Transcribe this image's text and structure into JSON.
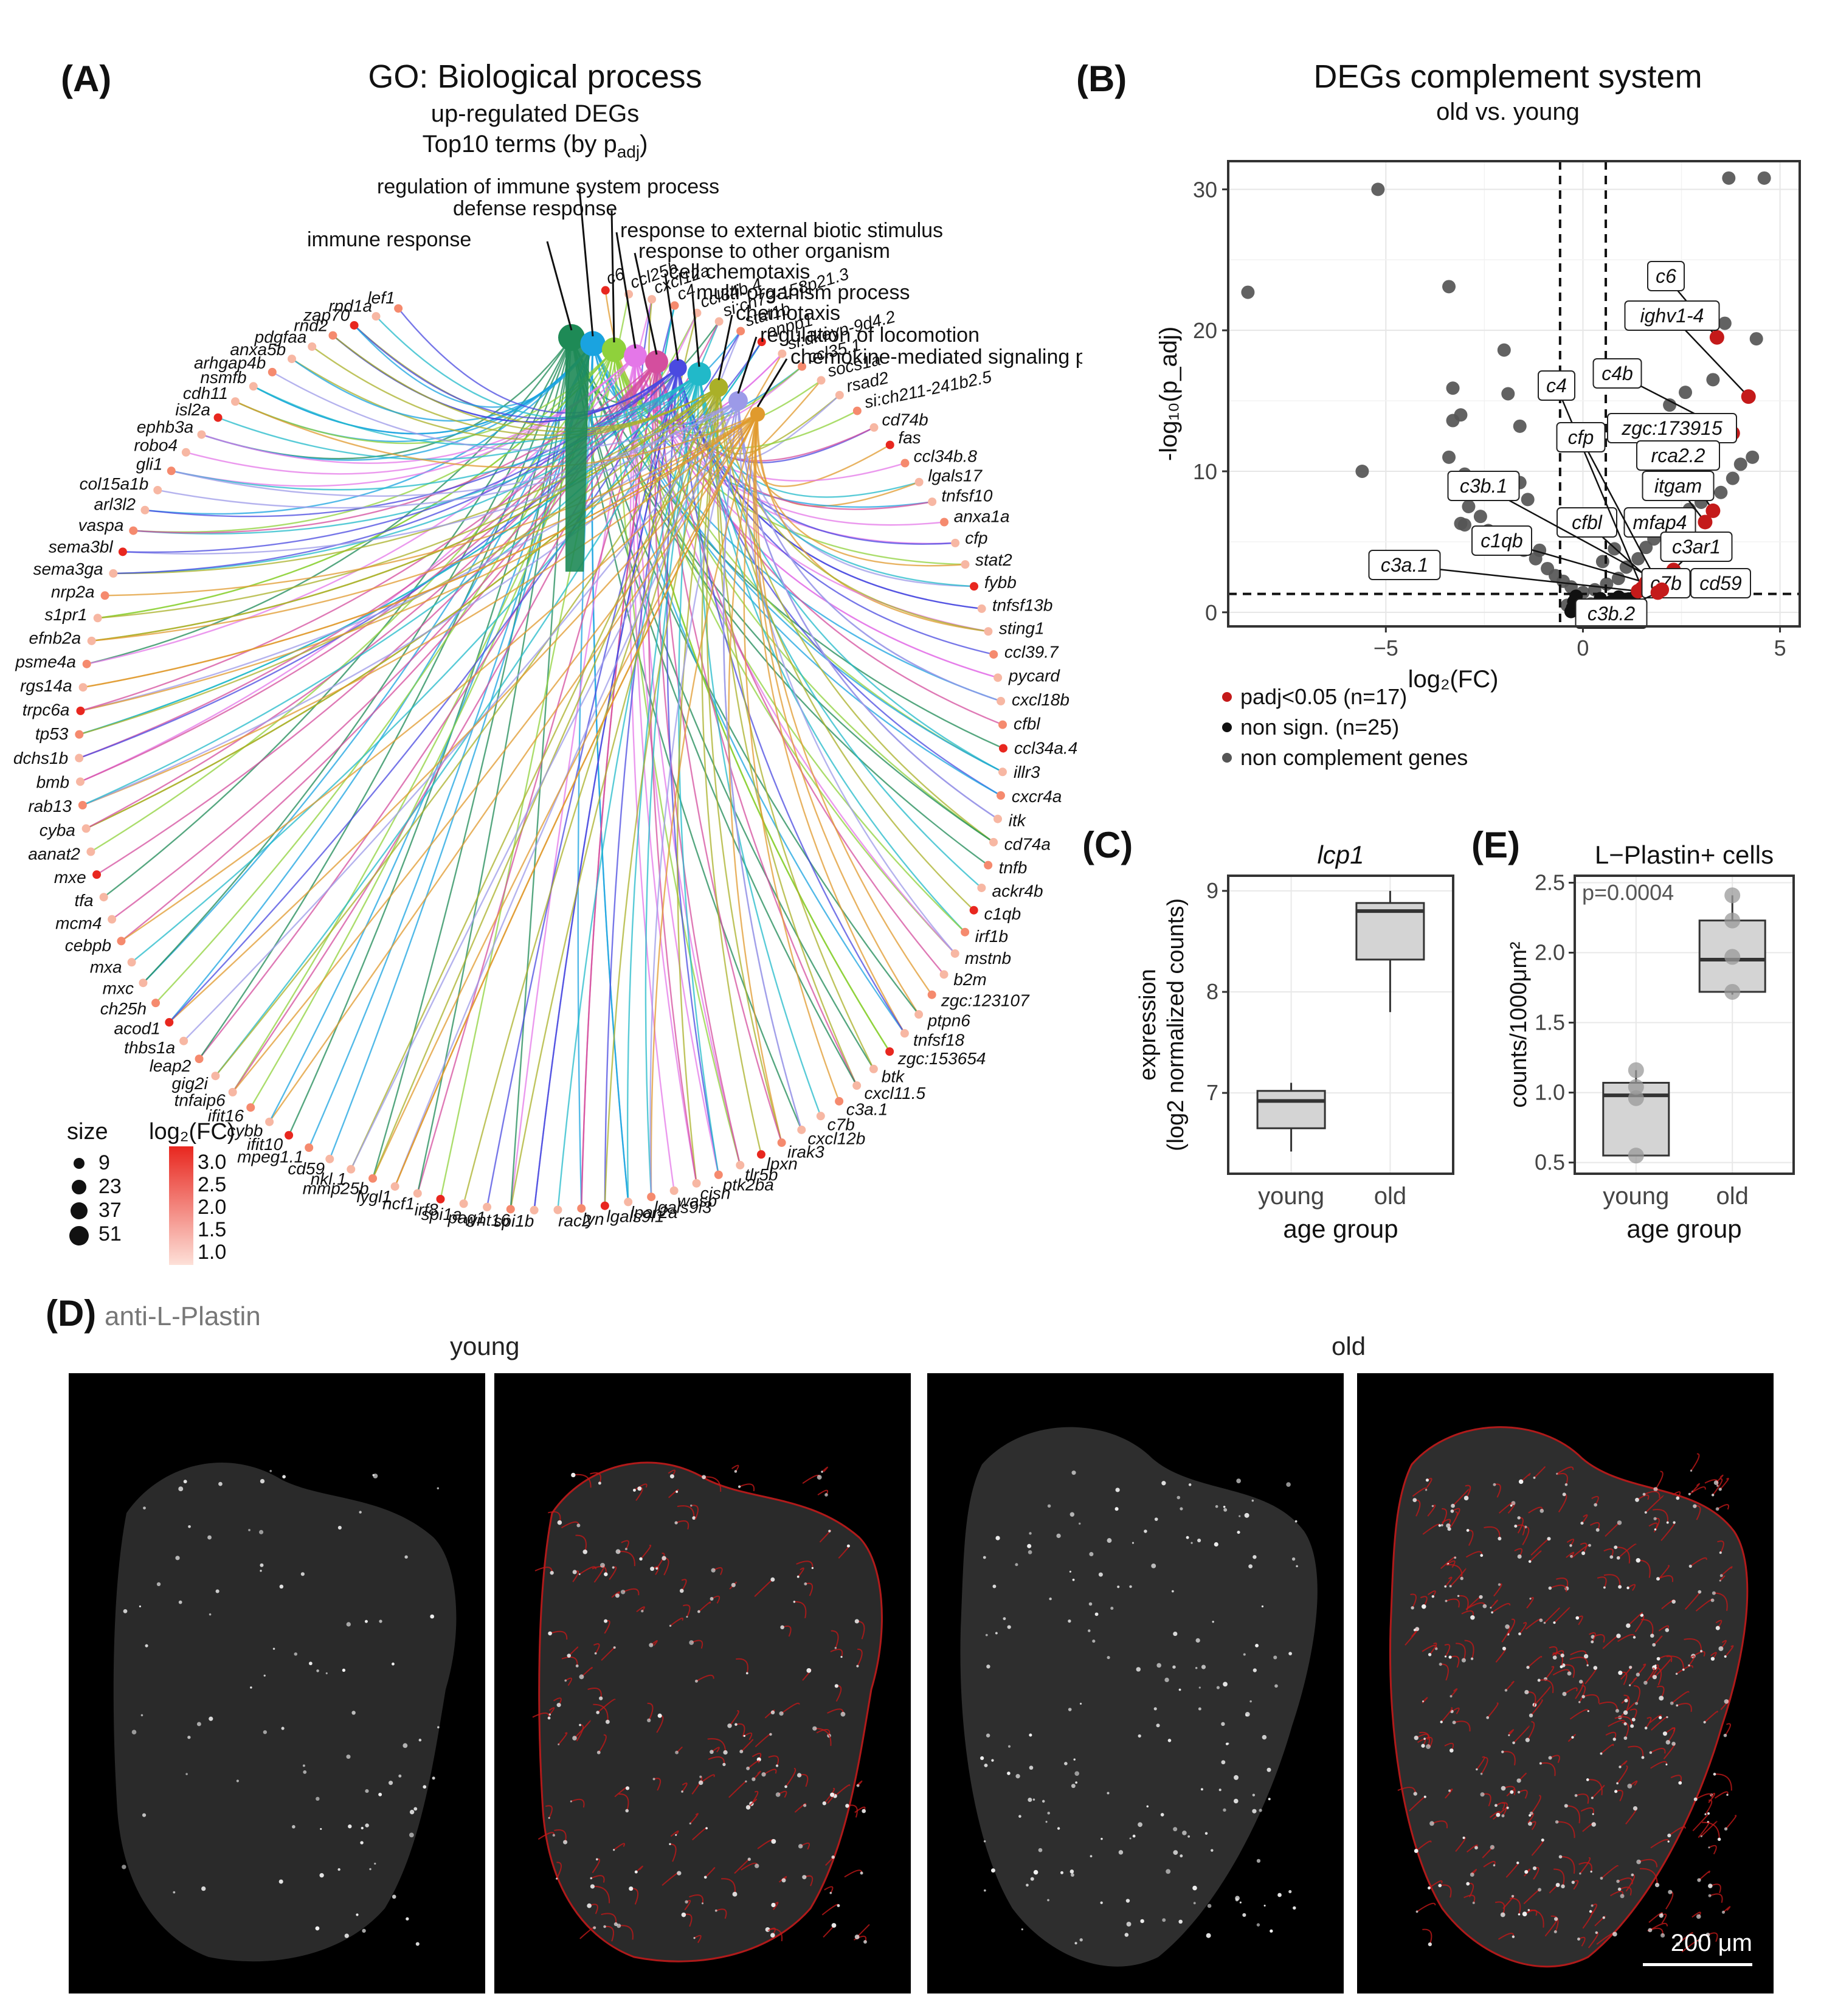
{
  "panelA": {
    "letter": "(A)",
    "title": "GO: Biological process",
    "subtitle1": "up-regulated DEGs",
    "subtitle2": "Top10 terms (by p",
    "subtitle2_sub": "adj",
    "subtitle2_end": ")",
    "size_legend_title": "size",
    "size_legend_values": [
      "9",
      "23",
      "37",
      "51"
    ],
    "color_legend_title": "log₂(FC)",
    "color_legend_values": [
      "3.0",
      "2.5",
      "2.0",
      "1.5",
      "1.0"
    ],
    "colors": {
      "low": "#fde0d8",
      "high": "#e8271f"
    }
  },
  "panelB": {
    "letter": "(B)",
    "title": "DEGs complement system",
    "subtitle": "old vs. young",
    "legend": [
      {
        "label": "padj<0.05 (n=17)",
        "color": "#c41a1a"
      },
      {
        "label": "non sign. (n=25)",
        "color": "#111111"
      },
      {
        "label": "non complement genes",
        "color": "#555555"
      }
    ]
  },
  "panelC": {
    "letter": "(C)"
  },
  "panelE": {
    "letter": "(E)"
  },
  "panelD": {
    "letter": "(D)",
    "label": "anti-L-Plastin",
    "young": "young",
    "old": "old",
    "scalebar": "200 μm"
  },
  "chart_data": [
    {
      "id": "go_network",
      "type": "network",
      "terms": [
        {
          "name": "immune response",
          "color": "#1e8a56",
          "size": 51
        },
        {
          "name": "regulation of immune system process",
          "color": "#1aa3e0",
          "size": 45
        },
        {
          "name": "defense response",
          "color": "#8fd13b",
          "size": 43
        },
        {
          "name": "response to external biotic stimulus",
          "color": "#e477e8",
          "size": 38
        },
        {
          "name": "response to other organism",
          "color": "#d44e9e",
          "size": 38
        },
        {
          "name": "cell chemotaxis",
          "color": "#4a4ae0",
          "size": 20
        },
        {
          "name": "multi-organism process",
          "color": "#21b9c9",
          "size": 40
        },
        {
          "name": "chemotaxis",
          "color": "#aab028",
          "size": 23
        },
        {
          "name": "regulation of locomotion",
          "color": "#9c9ae8",
          "size": 25
        },
        {
          "name": "chemokine-mediated signaling pathway",
          "color": "#e09a2d",
          "size": 9
        }
      ],
      "genes": [
        "c6",
        "ccl25b",
        "cxcl12a",
        "c4",
        "ccl34b.4",
        "si:ch73-158p21.3",
        "stat1b",
        "enpp1",
        "si:dkeyp-9d4.2",
        "ccl35.1",
        "socs1a",
        "rsad2",
        "si:ch211-241b2.5",
        "cd74b",
        "fas",
        "ccl34b.8",
        "lgals17",
        "tnfsf10",
        "anxa1a",
        "cfp",
        "stat2",
        "fybb",
        "tnfsf13b",
        "sting1",
        "ccl39.7",
        "pycard",
        "cxcl18b",
        "cfbl",
        "ccl34a.4",
        "illr3",
        "cxcr4a",
        "itk",
        "cd74a",
        "tnfb",
        "ackr4b",
        "c1qb",
        "irf1b",
        "mstnb",
        "b2m",
        "zgc:123107",
        "ptpn6",
        "tnfsf18",
        "zgc:153654",
        "btk",
        "cxcl11.5",
        "c3a.1",
        "c7b",
        "cxcl12b",
        "irak3",
        "lpxn",
        "tlr5b",
        "ptk2ba",
        "cish",
        "wasb",
        "lgals9l3",
        "lpar2a",
        "lgals9l1",
        "lyn",
        "rac2",
        "spi1b",
        "wnt16",
        "pag1",
        "spi1a",
        "irf8",
        "ncf1",
        "lygl1",
        "mmp25b",
        "nkl.1",
        "cd59",
        "mpeg1.1",
        "ifit10",
        "cybb",
        "ifit16",
        "tnfaip6",
        "gig2i",
        "leap2",
        "thbs1a",
        "acod1",
        "ch25h",
        "mxc",
        "mxa",
        "cebpb",
        "mcm4",
        "tfa",
        "mxe",
        "aanat2",
        "cyba",
        "rab13",
        "bmb",
        "dchs1b",
        "tp53",
        "trpc6a",
        "rgs14a",
        "psme4a",
        "efnb2a",
        "s1pr1",
        "nrp2a",
        "sema3ga",
        "sema3bl",
        "vaspa",
        "arl3l2",
        "col15a1b",
        "gli1",
        "robo4",
        "ephb3a",
        "isl2a",
        "cdh11",
        "nsmfb",
        "arhgap4b",
        "anxa5b",
        "pdgfaa",
        "rnd2",
        "zap70",
        "rnd1a",
        "lef1"
      ]
    },
    {
      "id": "volcano",
      "type": "scatter",
      "title": "DEGs complement system",
      "subtitle": "old vs. young",
      "xlabel": "log₂(FC)",
      "ylabel": "-log₁₀(p_adj)",
      "xlim": [
        -9,
        5.5
      ],
      "ylim": [
        -1,
        32
      ],
      "xticks": [
        -5,
        0,
        5
      ],
      "yticks": [
        0,
        10,
        20,
        30
      ],
      "vlines": [
        -0.58,
        0.58
      ],
      "hline": 1.3,
      "significant": [
        {
          "x": 3.4,
          "y": 19.5,
          "label": "c6"
        },
        {
          "x": 4.2,
          "y": 15.3,
          "label": "ighv1-4"
        },
        {
          "x": 3.8,
          "y": 12.7,
          "label": "c4b"
        },
        {
          "x": 3.0,
          "y": 8.7,
          "label": "zgc:173915"
        },
        {
          "x": 3.3,
          "y": 7.2,
          "label": "rca2.2"
        },
        {
          "x": 3.1,
          "y": 6.4,
          "label": "itgam"
        },
        {
          "x": 2.9,
          "y": 4.3,
          "label": "mfap4"
        },
        {
          "x": 2.3,
          "y": 3.0,
          "label": "c3ar1"
        },
        {
          "x": 1.7,
          "y": 2.3,
          "label": "cfbl"
        },
        {
          "x": 1.9,
          "y": 2.0,
          "label": "cd59"
        },
        {
          "x": 1.5,
          "y": 1.7,
          "label": "c4"
        },
        {
          "x": 1.8,
          "y": 2.6,
          "label": "cfp"
        },
        {
          "x": 2.1,
          "y": 1.9,
          "label": "c3b.1"
        },
        {
          "x": 1.6,
          "y": 2.1,
          "label": "c1qb"
        },
        {
          "x": 1.4,
          "y": 1.5,
          "label": "c3a.1"
        },
        {
          "x": 2.0,
          "y": 1.6,
          "label": "c7b"
        },
        {
          "x": 1.9,
          "y": 1.4,
          "label": "c3b.2"
        }
      ],
      "nonsig_count": 25,
      "background": [
        {
          "x": -8.5,
          "y": 22.7
        },
        {
          "x": -5.2,
          "y": 30.0
        },
        {
          "x": -3.4,
          "y": 23.1
        },
        {
          "x": -3.3,
          "y": 15.9
        },
        {
          "x": -3.1,
          "y": 14.0
        },
        {
          "x": -3.3,
          "y": 13.6
        },
        {
          "x": -3.0,
          "y": 9.8
        },
        {
          "x": -3.4,
          "y": 11.0
        },
        {
          "x": -5.6,
          "y": 10.0
        },
        {
          "x": -2.0,
          "y": 18.6
        },
        {
          "x": -1.9,
          "y": 15.5
        },
        {
          "x": -1.6,
          "y": 13.2
        },
        {
          "x": 3.7,
          "y": 30.8
        },
        {
          "x": 4.6,
          "y": 30.8
        },
        {
          "x": 3.6,
          "y": 20.5
        },
        {
          "x": 4.4,
          "y": 19.4
        },
        {
          "x": 2.6,
          "y": 15.6
        },
        {
          "x": 3.3,
          "y": 16.5
        },
        {
          "x": 2.2,
          "y": 14.7
        },
        {
          "x": 3.2,
          "y": 11.6
        },
        {
          "x": 2.6,
          "y": 11.4
        },
        {
          "x": 2.2,
          "y": 9.6
        },
        {
          "x": 1.7,
          "y": 10.9
        },
        {
          "x": -2.2,
          "y": 9.4
        },
        {
          "x": -1.6,
          "y": 9.2
        },
        {
          "x": -1.4,
          "y": 8.0
        },
        {
          "x": -2.9,
          "y": 7.5
        },
        {
          "x": -2.6,
          "y": 6.8
        },
        {
          "x": -3.1,
          "y": 6.3
        },
        {
          "x": -3.0,
          "y": 6.2
        },
        {
          "x": -2.4,
          "y": 5.8
        },
        {
          "x": -2.0,
          "y": 5.3
        },
        {
          "x": -1.8,
          "y": 4.9
        },
        {
          "x": -1.5,
          "y": 4.4
        },
        {
          "x": -1.2,
          "y": 3.8
        },
        {
          "x": -1.1,
          "y": 4.4
        },
        {
          "x": -0.9,
          "y": 3.1
        },
        {
          "x": -0.7,
          "y": 2.6
        },
        {
          "x": -0.5,
          "y": 2.2
        },
        {
          "x": -0.3,
          "y": 1.8
        },
        {
          "x": 0.0,
          "y": 1.4
        },
        {
          "x": 0.3,
          "y": 1.6
        },
        {
          "x": 0.6,
          "y": 2.0
        },
        {
          "x": 0.9,
          "y": 2.4
        },
        {
          "x": 1.1,
          "y": 3.2
        },
        {
          "x": 1.4,
          "y": 3.8
        },
        {
          "x": 1.6,
          "y": 4.6
        },
        {
          "x": 1.8,
          "y": 5.2
        },
        {
          "x": 2.0,
          "y": 6.0
        },
        {
          "x": 2.4,
          "y": 6.6
        },
        {
          "x": 2.7,
          "y": 7.3
        },
        {
          "x": 3.0,
          "y": 7.8
        },
        {
          "x": 3.5,
          "y": 8.5
        },
        {
          "x": 3.8,
          "y": 9.5
        },
        {
          "x": 4.0,
          "y": 10.5
        },
        {
          "x": 4.3,
          "y": 11.0
        },
        {
          "x": 1.2,
          "y": 6.0
        },
        {
          "x": 0.8,
          "y": 4.5
        },
        {
          "x": 0.5,
          "y": 3.6
        },
        {
          "x": -0.2,
          "y": 0.8
        },
        {
          "x": 0.2,
          "y": 0.6
        },
        {
          "x": -0.4,
          "y": 0.5
        },
        {
          "x": 0.4,
          "y": 0.3
        },
        {
          "x": 0.1,
          "y": 0.2
        },
        {
          "x": -0.1,
          "y": 0.1
        }
      ]
    },
    {
      "id": "lcp1_box",
      "type": "box",
      "title": "lcp1",
      "xlabel": "age group",
      "ylabel": "expression (log2 normalized counts)",
      "categories": [
        "young",
        "old"
      ],
      "ylim": [
        6.2,
        9.15
      ],
      "yticks": [
        7,
        8,
        9
      ],
      "boxes": [
        {
          "whisker_low": 6.42,
          "q1": 6.65,
          "median": 6.92,
          "q3": 7.02,
          "whisker_high": 7.1
        },
        {
          "whisker_low": 7.8,
          "q1": 8.32,
          "median": 8.8,
          "q3": 8.88,
          "whisker_high": 9.0
        }
      ]
    },
    {
      "id": "lplastin_box",
      "type": "box",
      "title": "L−Plastin+ cells",
      "annotation": "p=0.0004",
      "xlabel": "age group",
      "ylabel": "counts/1000μm²",
      "categories": [
        "young",
        "old"
      ],
      "ylim": [
        0.42,
        2.55
      ],
      "yticks": [
        0.5,
        1.0,
        1.5,
        2.0,
        2.5
      ],
      "boxes": [
        {
          "whisker_low": 0.55,
          "q1": 0.55,
          "median": 0.98,
          "q3": 1.07,
          "whisker_high": 1.16
        },
        {
          "whisker_low": 1.7,
          "q1": 1.72,
          "median": 1.95,
          "q3": 2.23,
          "whisker_high": 2.41
        }
      ],
      "points": [
        {
          "group": 0,
          "y": 1.16
        },
        {
          "group": 0,
          "y": 1.04
        },
        {
          "group": 0,
          "y": 0.96
        },
        {
          "group": 0,
          "y": 0.55
        },
        {
          "group": 1,
          "y": 2.41
        },
        {
          "group": 1,
          "y": 2.23
        },
        {
          "group": 1,
          "y": 1.97
        },
        {
          "group": 1,
          "y": 1.72
        }
      ]
    }
  ]
}
